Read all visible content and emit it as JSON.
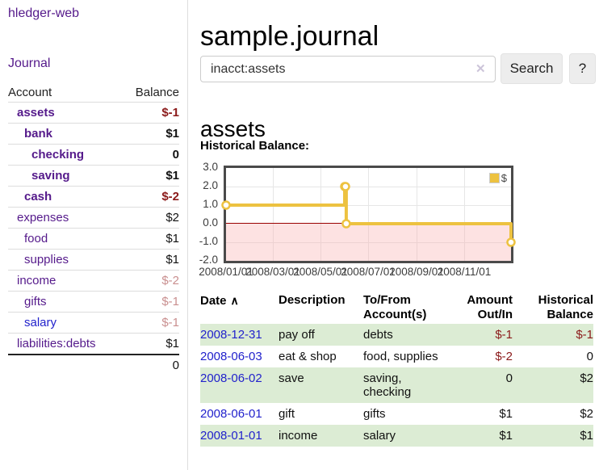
{
  "app": {
    "brand": "hledger-web"
  },
  "sidebar": {
    "journal_link": "Journal",
    "account_table": {
      "name_header": "Account",
      "balance_header": "Balance",
      "accounts": [
        {
          "name": "assets",
          "balance": "$-1",
          "level": 1,
          "bold": true,
          "name_color": "purple",
          "balance_color": "negative-strong"
        },
        {
          "name": "bank",
          "balance": "$1",
          "level": 2,
          "bold": true,
          "name_color": "purple",
          "balance_color": "normal-strong"
        },
        {
          "name": "checking",
          "balance": "0",
          "level": 3,
          "bold": true,
          "name_color": "purple",
          "balance_color": "normal-strong"
        },
        {
          "name": "saving",
          "balance": "$1",
          "level": 3,
          "bold": true,
          "name_color": "purple",
          "balance_color": "normal-strong"
        },
        {
          "name": "cash",
          "balance": "$-2",
          "level": 2,
          "bold": true,
          "name_color": "purple",
          "balance_color": "negative-strong"
        },
        {
          "name": "expenses",
          "balance": "$2",
          "level": 1,
          "bold": false,
          "name_color": "purple",
          "balance_color": "normal"
        },
        {
          "name": "food",
          "balance": "$1",
          "level": 2,
          "bold": false,
          "name_color": "purple",
          "balance_color": "normal"
        },
        {
          "name": "supplies",
          "balance": "$1",
          "level": 2,
          "bold": false,
          "name_color": "purple",
          "balance_color": "normal"
        },
        {
          "name": "income",
          "balance": "$-2",
          "level": 1,
          "bold": false,
          "name_color": "purple",
          "balance_color": "negative-muted"
        },
        {
          "name": "gifts",
          "balance": "$-1",
          "level": 2,
          "bold": false,
          "name_color": "purple",
          "balance_color": "negative-muted"
        },
        {
          "name": "salary",
          "balance": "$-1",
          "level": 2,
          "bold": false,
          "name_color": "blue",
          "balance_color": "negative-muted"
        },
        {
          "name": "liabilities:debts",
          "balance": "$1",
          "level": 1,
          "bold": false,
          "name_color": "purple",
          "balance_color": "normal"
        }
      ],
      "total": "0"
    }
  },
  "header": {
    "title": "sample.journal"
  },
  "search": {
    "value": "inacct:assets",
    "clear_icon": "✕",
    "button_label": "Search",
    "help_label": "?"
  },
  "main": {
    "account_heading": "assets",
    "chart_label": "Historical Balance:"
  },
  "chart_data": {
    "type": "line",
    "title": "Historical Balance:",
    "step": true,
    "ylim": [
      -2,
      3
    ],
    "xlim_days": [
      0,
      365
    ],
    "grid": true,
    "legend_position": "top-right",
    "series": [
      {
        "name": "$",
        "color": "#edc240",
        "points": [
          {
            "date": "2008-01-01",
            "day": 0,
            "value": 1
          },
          {
            "date": "2008-06-01",
            "day": 152,
            "value": 2
          },
          {
            "date": "2008-06-02",
            "day": 153,
            "value": 2
          },
          {
            "date": "2008-06-03",
            "day": 154,
            "value": 0
          },
          {
            "date": "2008-12-31",
            "day": 365,
            "value": -1
          }
        ]
      }
    ],
    "x_ticks": [
      {
        "label": "2008/01/01",
        "day": 0
      },
      {
        "label": "2008/03/01",
        "day": 60
      },
      {
        "label": "2008/05/01",
        "day": 121
      },
      {
        "label": "2008/07/01",
        "day": 182
      },
      {
        "label": "2008/09/01",
        "day": 244
      },
      {
        "label": "2008/11/01",
        "day": 305
      }
    ],
    "y_ticks": [
      {
        "label": "3.0",
        "v": 3
      },
      {
        "label": "2.0",
        "v": 2
      },
      {
        "label": "1.0",
        "v": 1
      },
      {
        "label": "0.0",
        "v": 0
      },
      {
        "label": "-1.0",
        "v": -1
      },
      {
        "label": "-2.0",
        "v": -2
      }
    ],
    "negative_zone_color": "#ffdddd",
    "zero_line_color": "#990000"
  },
  "register": {
    "headers": [
      "Date",
      "Description",
      "To/From Account(s)",
      "Amount Out/In",
      "Historical Balance"
    ],
    "sort_icon": "∧",
    "rows": [
      {
        "date": "2008-12-31",
        "description": "pay off",
        "accounts": "debts",
        "amount": "$-1",
        "balance": "$-1",
        "amount_neg": true,
        "balance_neg": true
      },
      {
        "date": "2008-06-03",
        "description": "eat & shop",
        "accounts": "food, supplies",
        "amount": "$-2",
        "balance": "0",
        "amount_neg": true,
        "balance_neg": false
      },
      {
        "date": "2008-06-02",
        "description": "save",
        "accounts": "saving, checking",
        "amount": "0",
        "balance": "$2",
        "amount_neg": false,
        "balance_neg": false
      },
      {
        "date": "2008-06-01",
        "description": "gift",
        "accounts": "gifts",
        "amount": "$1",
        "balance": "$2",
        "amount_neg": false,
        "balance_neg": false
      },
      {
        "date": "2008-01-01",
        "description": "income",
        "accounts": "salary",
        "amount": "$1",
        "balance": "$1",
        "amount_neg": false,
        "balance_neg": false
      }
    ]
  },
  "colors": {
    "link_purple": "#551a8b",
    "link_blue": "#2222cc",
    "negative_strong": "#8b1a1a",
    "negative_muted": "#c98f8f",
    "stripe_green": "#dcecd4",
    "series_gold": "#edc240"
  }
}
